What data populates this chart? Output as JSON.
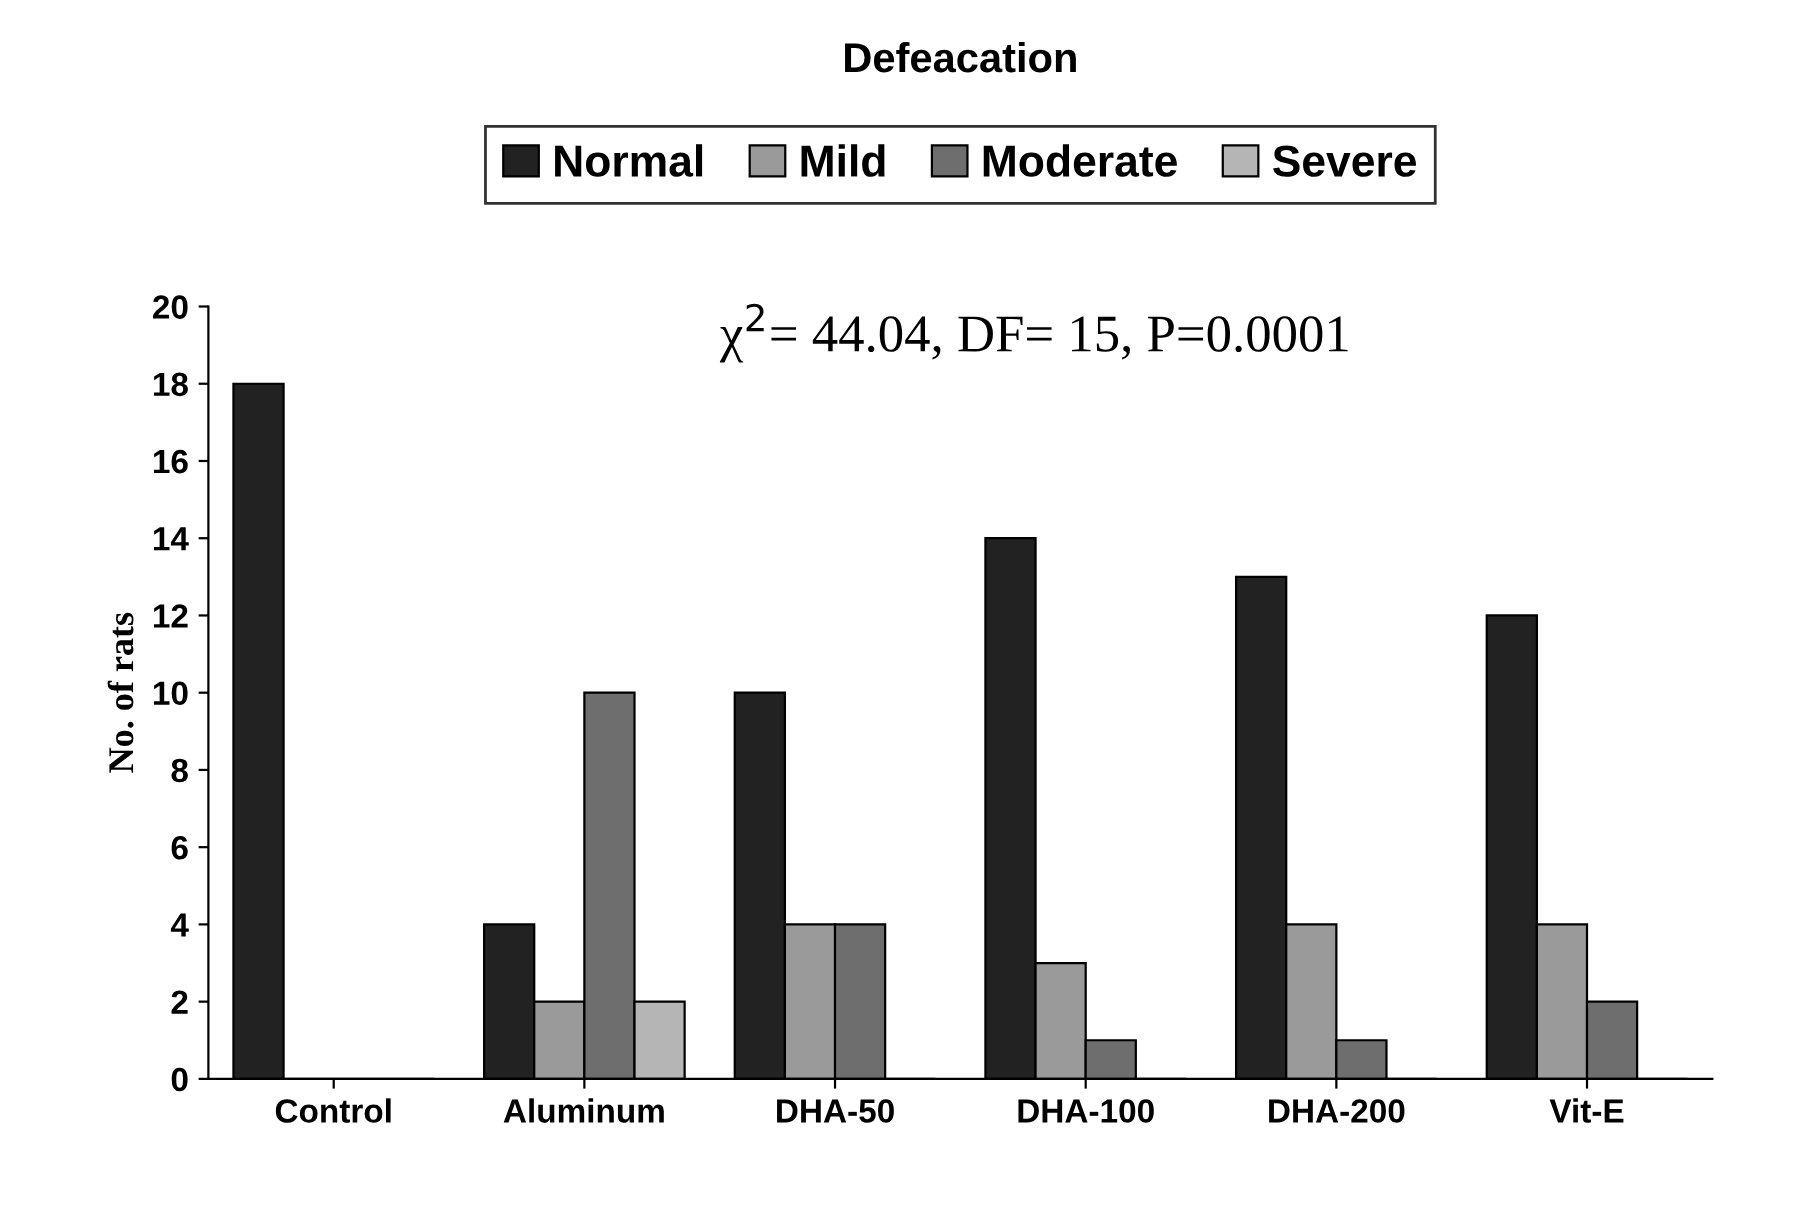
{
  "chart_data": {
    "type": "bar",
    "title": "Defeacation",
    "ylabel": "No. of rats",
    "categories": [
      "Control",
      "Aluminum",
      "DHA-50",
      "DHA-100",
      "DHA-200",
      "Vit-E"
    ],
    "series": [
      {
        "name": "Normal",
        "color": "#222222",
        "values": [
          18,
          4,
          10,
          14,
          13,
          12
        ]
      },
      {
        "name": "Mild",
        "color": "#9a9a9a",
        "values": [
          0,
          2,
          4,
          3,
          4,
          4
        ]
      },
      {
        "name": "Moderate",
        "color": "#6e6e6e",
        "values": [
          0,
          10,
          4,
          1,
          1,
          2
        ]
      },
      {
        "name": "Severe",
        "color": "#b5b5b5",
        "values": [
          0,
          2,
          0,
          0,
          0,
          0
        ]
      }
    ],
    "ylim": [
      0,
      20
    ],
    "yticks": [
      0,
      2,
      4,
      6,
      8,
      10,
      12,
      14,
      16,
      18,
      20
    ],
    "annotations": [
      "χ$^{2}$= 44.04, DF= 15, P=0.0001"
    ],
    "legend": "top",
    "grid": false
  }
}
